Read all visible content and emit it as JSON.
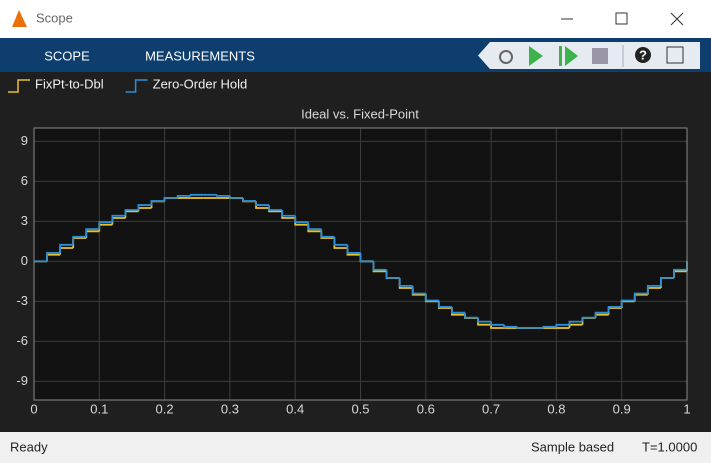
{
  "window": {
    "title": "Scope"
  },
  "toolstrip": {
    "tabs": [
      "SCOPE",
      "MEASUREMENTS"
    ]
  },
  "chart_data": {
    "type": "line",
    "drawstyle": "steps-post",
    "title": "Ideal vs. Fixed-Point",
    "x": [
      0,
      0.02,
      0.04,
      0.06,
      0.08,
      0.1,
      0.12,
      0.14,
      0.16,
      0.18,
      0.2,
      0.22,
      0.24,
      0.26,
      0.28,
      0.3,
      0.32,
      0.34,
      0.36,
      0.38,
      0.4,
      0.42,
      0.44,
      0.46,
      0.48,
      0.5,
      0.52,
      0.54,
      0.56,
      0.58,
      0.6,
      0.62,
      0.64,
      0.66,
      0.68,
      0.7,
      0.72,
      0.74,
      0.76,
      0.78,
      0.8,
      0.82,
      0.84,
      0.86,
      0.88,
      0.9,
      0.92,
      0.94,
      0.96,
      0.98,
      1
    ],
    "series": [
      {
        "name": "FixPt-to-Dbl",
        "color": "#e8c12e",
        "values": [
          0,
          0.5,
          1,
          1.75,
          2.25,
          2.75,
          3.25,
          3.75,
          4,
          4.5,
          4.75,
          4.75,
          4.75,
          4.75,
          4.75,
          4.75,
          4.5,
          4,
          3.75,
          3.25,
          2.75,
          2.25,
          1.75,
          1,
          0.5,
          0,
          -0.75,
          -1.25,
          -2,
          -2.5,
          -3,
          -3.5,
          -4,
          -4.25,
          -4.75,
          -5,
          -5,
          -5,
          -5,
          -5,
          -5,
          -4.75,
          -4.25,
          -4,
          -3.5,
          -3,
          -2.5,
          -2,
          -1.25,
          -0.75,
          0
        ]
      },
      {
        "name": "Zero-Order Hold",
        "color": "#2a8fd8",
        "values": [
          0,
          0.63,
          1.24,
          1.84,
          2.41,
          2.94,
          3.42,
          3.85,
          4.22,
          4.52,
          4.76,
          4.91,
          4.99,
          4.99,
          4.91,
          4.76,
          4.52,
          4.22,
          3.85,
          3.42,
          2.94,
          2.41,
          1.84,
          1.24,
          0.63,
          0,
          -0.63,
          -1.24,
          -1.84,
          -2.41,
          -2.94,
          -3.42,
          -3.85,
          -4.22,
          -4.52,
          -4.76,
          -4.91,
          -4.99,
          -4.99,
          -4.91,
          -4.76,
          -4.52,
          -4.22,
          -3.85,
          -3.42,
          -2.94,
          -2.41,
          -1.84,
          -1.24,
          -0.63,
          0
        ]
      }
    ],
    "xlim": [
      0,
      1
    ],
    "xticks": [
      0,
      0.1,
      0.2,
      0.3,
      0.4,
      0.5,
      0.6,
      0.7,
      0.8,
      0.9,
      1
    ],
    "ylim": [
      -10.4,
      10
    ],
    "yticks": [
      -9,
      -6,
      -3,
      0,
      3,
      6,
      9
    ],
    "grid": true
  },
  "status": {
    "left": "Ready",
    "mode": "Sample based",
    "time": "T=1.0000"
  }
}
